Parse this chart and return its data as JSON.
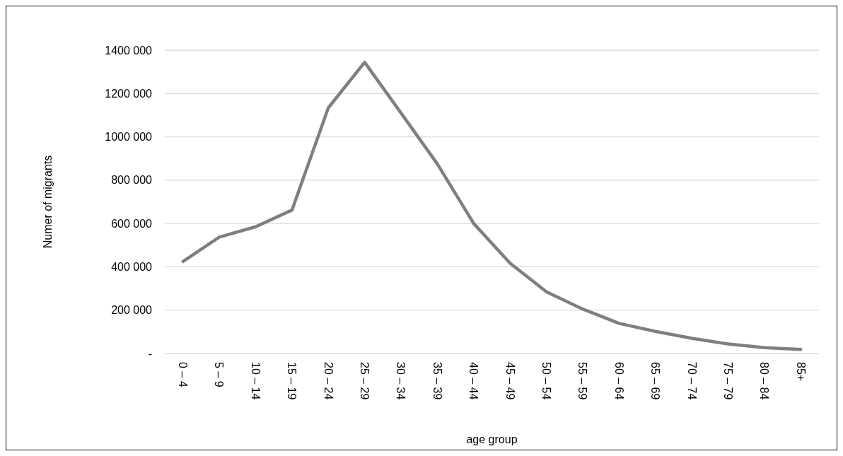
{
  "chart_data": {
    "type": "line",
    "xlabel": "age group",
    "ylabel": "Numer of migrants",
    "categories": [
      "0 – 4",
      "5 – 9",
      "10 – 14",
      "15 – 19",
      "20 – 24",
      "25 – 29",
      "30 – 34",
      "35 – 39",
      "40 – 44",
      "45 – 49",
      "50 – 54",
      "55 – 59",
      "60 – 64",
      "65 – 69",
      "70 – 74",
      "75 – 79",
      "80 – 84",
      "85+"
    ],
    "series": [
      {
        "color": "#7f7f7f",
        "values": [
          425000,
          537000,
          585000,
          662000,
          1134000,
          1344000,
          1110000,
          875000,
          600000,
          417000,
          285000,
          205000,
          139000,
          102000,
          70000,
          44000,
          27000,
          19000
        ]
      }
    ],
    "ylim": [
      0,
      1400000
    ],
    "yticks": [
      {
        "value": 0,
        "label": "-"
      },
      {
        "value": 200000,
        "label": "200 000"
      },
      {
        "value": 400000,
        "label": "400 000"
      },
      {
        "value": 600000,
        "label": "600 000"
      },
      {
        "value": 800000,
        "label": "800 000"
      },
      {
        "value": 1000000,
        "label": "1000 000"
      },
      {
        "value": 1200000,
        "label": "1200 000"
      },
      {
        "value": 1400000,
        "label": "1400 000"
      }
    ],
    "grid": "y",
    "marker": "none",
    "line_style": "solid"
  }
}
